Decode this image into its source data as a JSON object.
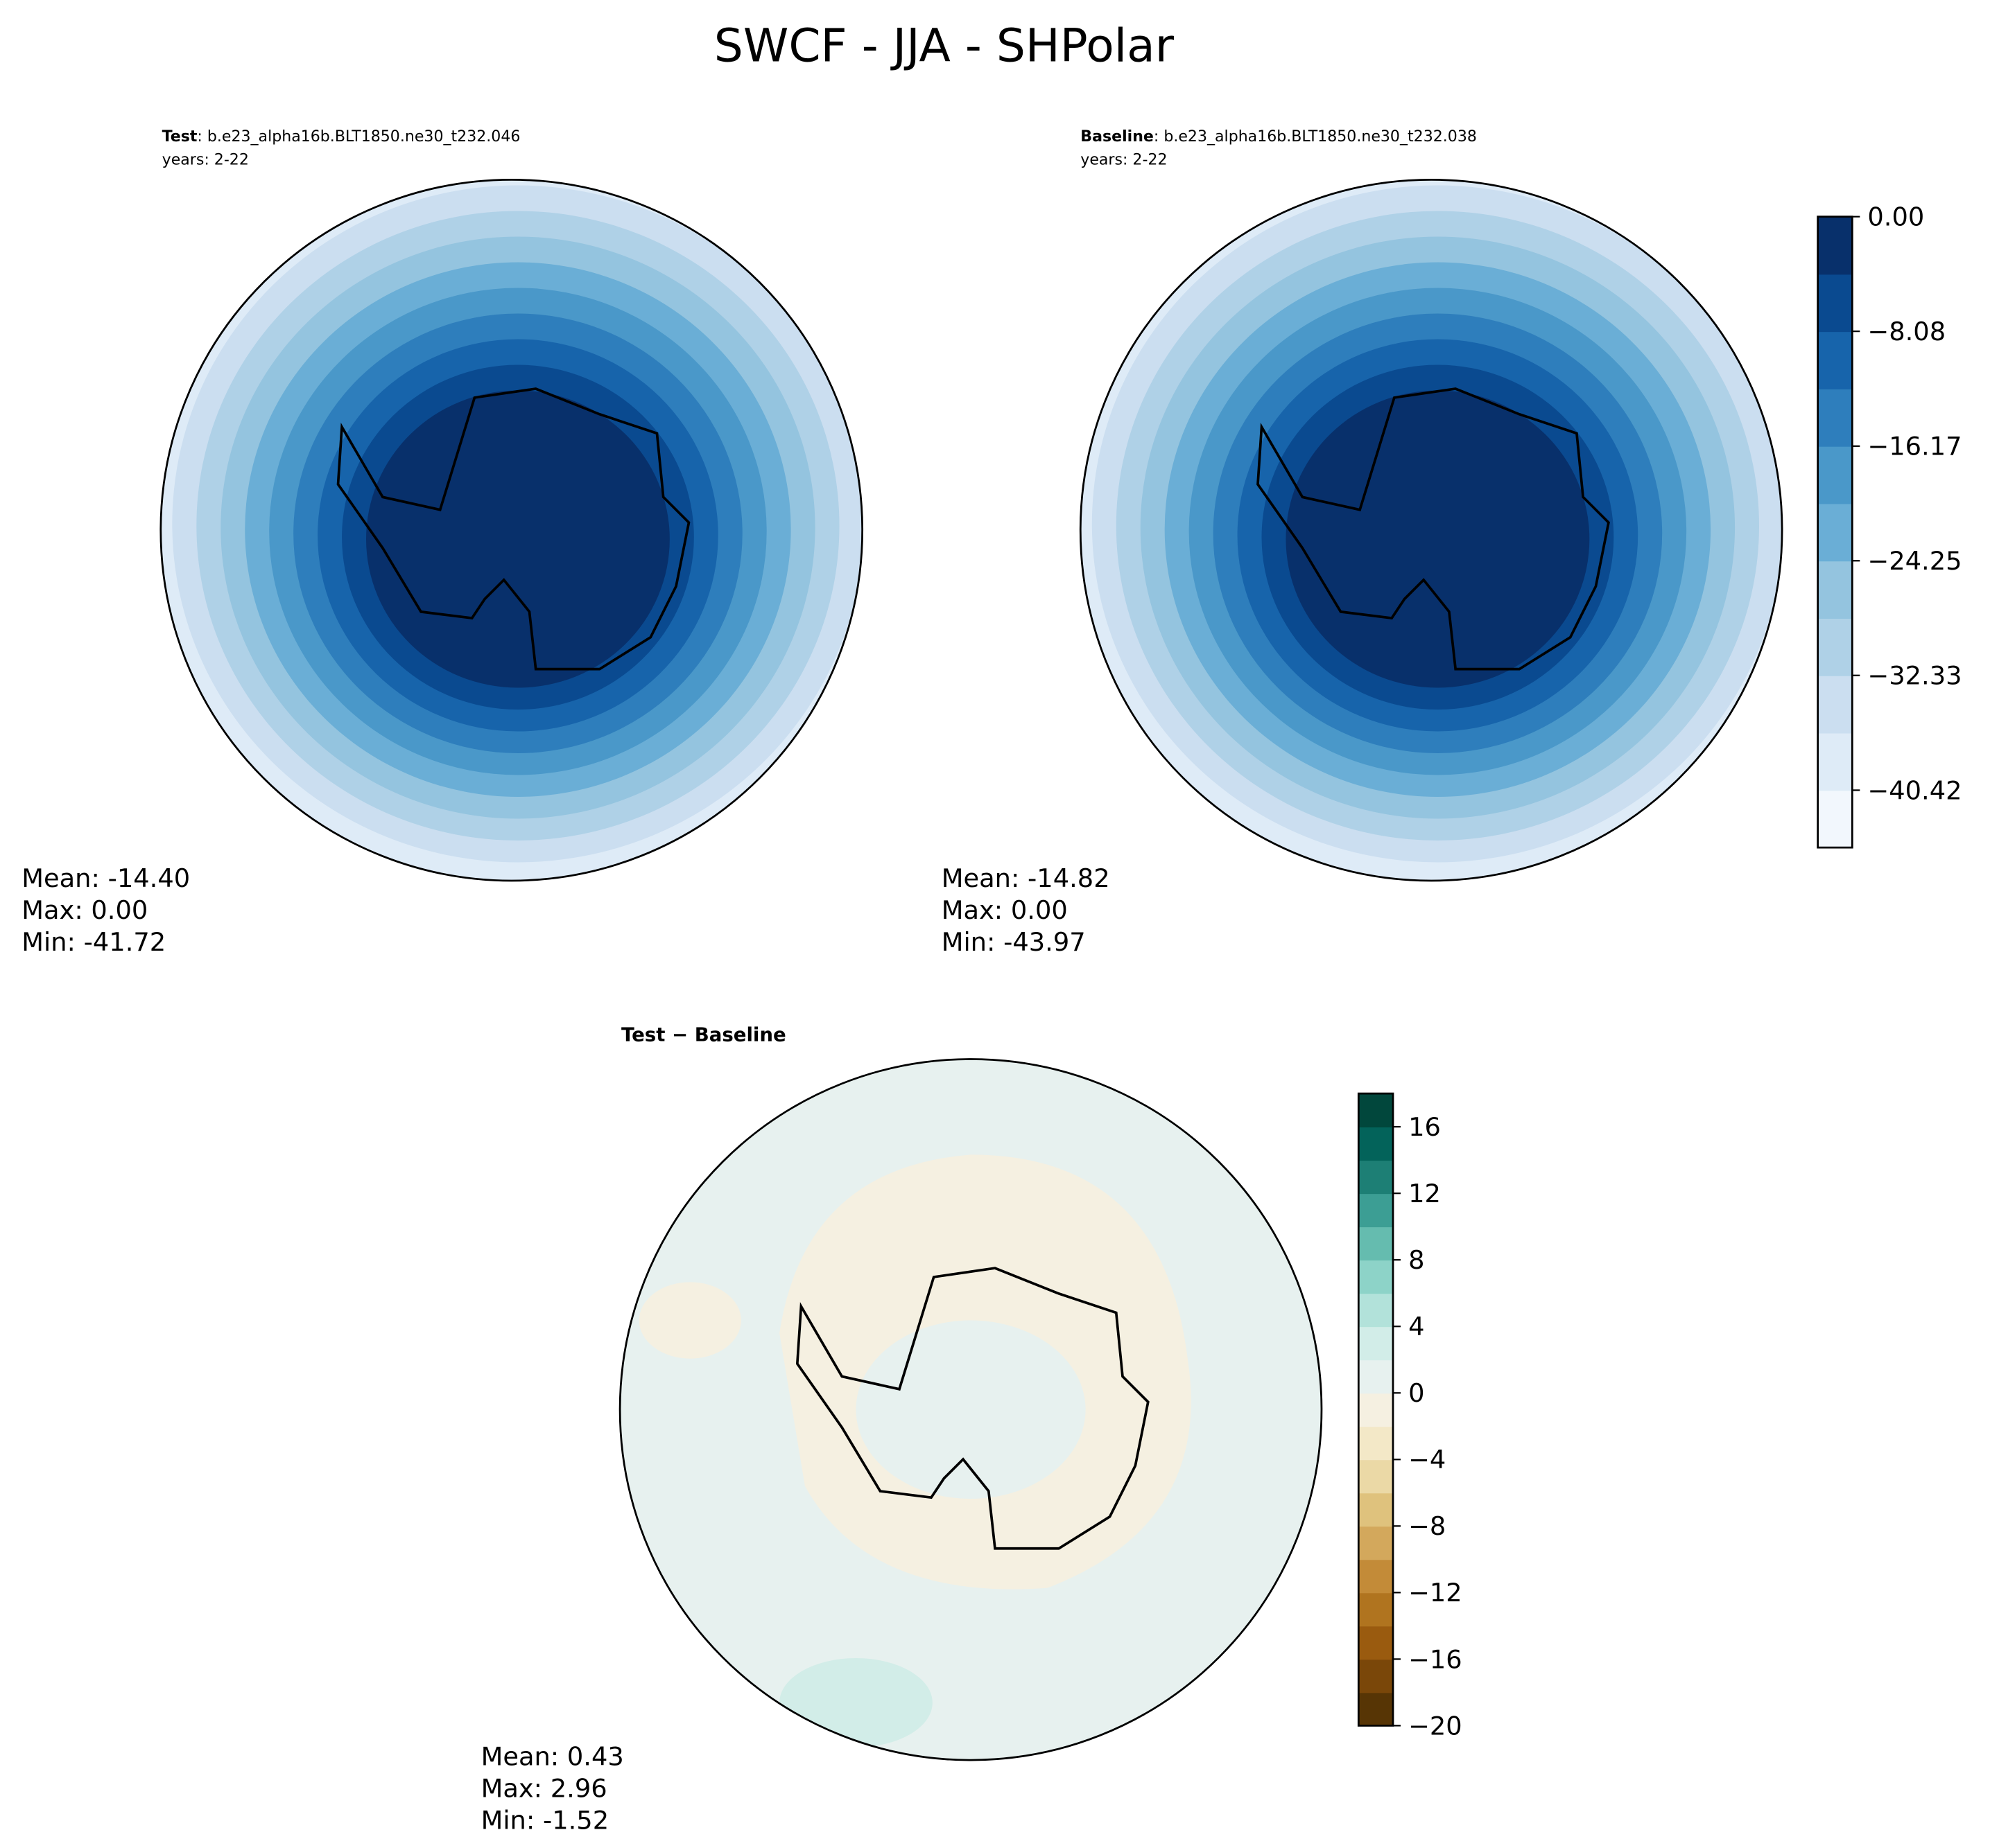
{
  "title": "SWCF - JJA - SHPolar",
  "panels": [
    {
      "title_bold": "Test",
      "title": ": b.e23_alpha16b.BLT1850.ne30_t232.046",
      "years": "years: 2-22",
      "stats": [
        "Mean: -14.40",
        "Max:  0.00",
        "Min: -41.72"
      ]
    },
    {
      "title_bold": "Baseline",
      "title": ": b.e23_alpha16b.BLT1850.ne30_t232.038",
      "years": "years: 2-22",
      "stats": [
        "Mean: -14.82",
        "Max:  0.00",
        "Min: -43.97"
      ]
    },
    {
      "title_bold": "Test − Baseline",
      "stats": [
        "Mean:  0.43",
        "Max:  2.96",
        "Min: -1.52"
      ]
    }
  ],
  "colorbars": [
    {
      "lim": [
        -44.46,
        0
      ],
      "ticks": [
        {
          "value": 0,
          "label": "0.00"
        },
        {
          "value": -8.08,
          "label": "−8.08"
        },
        {
          "value": -16.17,
          "label": "−16.17"
        },
        {
          "value": -24.25,
          "label": "−24.25"
        },
        {
          "value": -32.33,
          "label": "−32.33"
        },
        {
          "value": -40.42,
          "label": "−40.42"
        }
      ],
      "colors": [
        "#f2f7fd",
        "#deebf7",
        "#cbdef0",
        "#afd1e7",
        "#94c4df",
        "#6aaed6",
        "#4a98c9",
        "#2e7ebc",
        "#1764ab",
        "#0a4a90",
        "#08306b"
      ]
    },
    {
      "lim": [
        -20,
        18
      ],
      "ticks": [
        16,
        12,
        8,
        4,
        0,
        {
          "value": -4,
          "label": "−4"
        },
        {
          "value": -8,
          "label": "−8"
        },
        {
          "value": -12,
          "label": "−12"
        },
        {
          "value": -16,
          "label": "−16"
        },
        {
          "value": -20,
          "label": "−20"
        }
      ],
      "colors": [
        "#573505",
        "#7a4709",
        "#9a5b0f",
        "#b0741f",
        "#c38b38",
        "#d3a85c",
        "#dfc27d",
        "#ebd9a6",
        "#f3e8c7",
        "#f5f0e1",
        "#e7f1ef",
        "#d2ede8",
        "#b2e2da",
        "#8dd3c8",
        "#65bcaf",
        "#3c9e94",
        "#1d7f75",
        "#03635a",
        "#01473c"
      ]
    }
  ]
}
